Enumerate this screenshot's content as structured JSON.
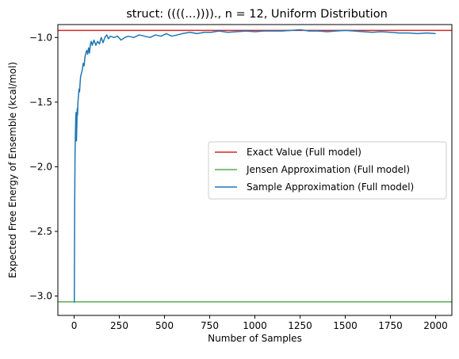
{
  "chart_data": {
    "type": "line",
    "title": "struct: ((((...)))).,  n = 12, Uniform Distribution",
    "xlabel": "Number of Samples",
    "ylabel": "Expected Free Energy of Ensemble (kcal/mol)",
    "xlim": [
      -90,
      2090
    ],
    "ylim": [
      -3.15,
      -0.9
    ],
    "xticks": [
      0,
      250,
      500,
      750,
      1000,
      1250,
      1500,
      1750,
      2000
    ],
    "xtick_labels": [
      "0",
      "250",
      "500",
      "750",
      "1000",
      "1250",
      "1500",
      "1750",
      "2000"
    ],
    "yticks": [
      -3.0,
      -2.5,
      -2.0,
      -1.5,
      -1.0
    ],
    "ytick_labels": [
      "−3.0",
      "−2.5",
      "−2.0",
      "−1.5",
      "−1.0"
    ],
    "grid": false,
    "legend_position": "center-right",
    "series": [
      {
        "name": "Exact Value (Full model)",
        "kind": "hline",
        "y": -0.945,
        "color": "#d62728"
      },
      {
        "name": "Jensen Approximation (Full model)",
        "kind": "hline",
        "y": -3.045,
        "color": "#5aaa55"
      },
      {
        "name": "Sample Approximation (Full model)",
        "kind": "line",
        "color": "#1f77b4",
        "x": [
          1,
          3,
          5,
          7,
          9,
          11,
          13,
          15,
          17,
          19,
          21,
          24,
          27,
          30,
          33,
          36,
          40,
          45,
          50,
          55,
          60,
          65,
          70,
          75,
          80,
          85,
          90,
          95,
          100,
          110,
          120,
          130,
          140,
          150,
          160,
          170,
          180,
          190,
          200,
          220,
          240,
          260,
          280,
          300,
          330,
          360,
          390,
          420,
          450,
          480,
          510,
          540,
          570,
          600,
          640,
          680,
          720,
          760,
          800,
          850,
          900,
          950,
          1000,
          1050,
          1100,
          1150,
          1200,
          1250,
          1300,
          1350,
          1400,
          1450,
          1500,
          1550,
          1600,
          1650,
          1700,
          1750,
          1800,
          1850,
          1900,
          1950,
          2000
        ],
        "y": [
          -3.05,
          -2.3,
          -1.9,
          -1.75,
          -1.62,
          -1.58,
          -1.8,
          -1.68,
          -1.55,
          -1.6,
          -1.5,
          -1.45,
          -1.4,
          -1.42,
          -1.35,
          -1.3,
          -1.28,
          -1.25,
          -1.2,
          -1.22,
          -1.15,
          -1.12,
          -1.1,
          -1.13,
          -1.08,
          -1.12,
          -1.05,
          -1.03,
          -1.06,
          -1.02,
          -1.06,
          -1.03,
          -1.05,
          -1.0,
          -1.04,
          -1.0,
          -0.98,
          -1.01,
          -0.99,
          -1.0,
          -0.99,
          -1.02,
          -1.0,
          -0.99,
          -1.0,
          -0.98,
          -0.99,
          -1.0,
          -0.98,
          -0.99,
          -0.97,
          -0.99,
          -0.98,
          -0.97,
          -0.96,
          -0.97,
          -0.96,
          -0.96,
          -0.95,
          -0.96,
          -0.955,
          -0.95,
          -0.955,
          -0.95,
          -0.95,
          -0.95,
          -0.945,
          -0.94,
          -0.95,
          -0.95,
          -0.955,
          -0.95,
          -0.945,
          -0.95,
          -0.955,
          -0.96,
          -0.955,
          -0.96,
          -0.965,
          -0.965,
          -0.97,
          -0.965,
          -0.97
        ]
      }
    ]
  }
}
